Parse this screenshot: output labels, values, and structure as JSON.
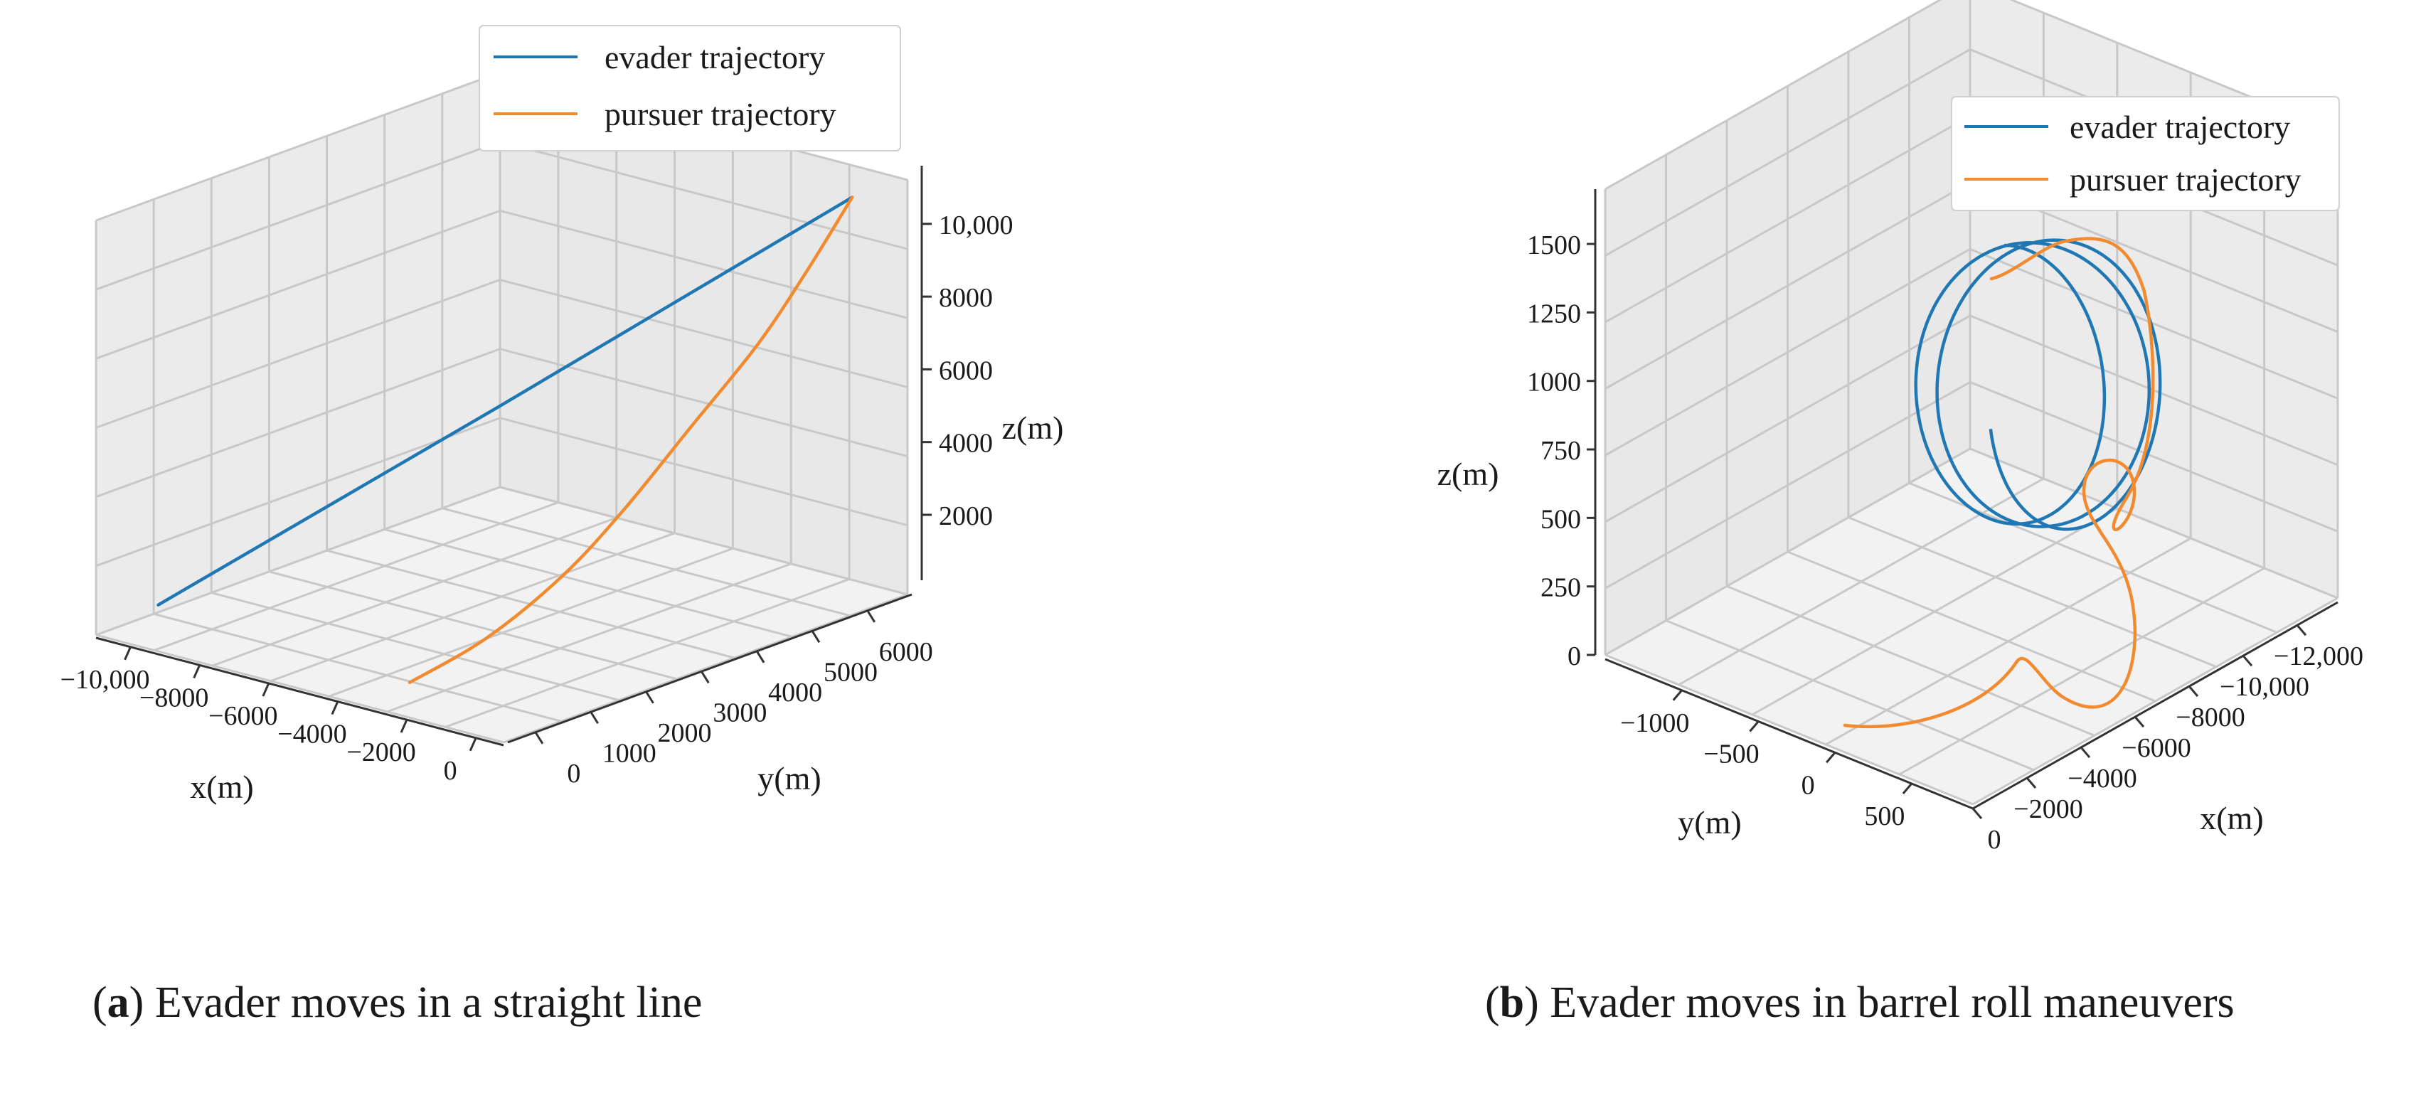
{
  "colors": {
    "evader": "#1f77b4",
    "pursuer": "#f28a30",
    "pane_left": "#ebebeb",
    "pane_right": "#e8e8e8",
    "pane_floor": "#f2f2f2",
    "grid": "#c8c8c8",
    "axis": "#333333"
  },
  "legend": {
    "evader_label": "evader trajectory",
    "pursuer_label": "pursuer trajectory"
  },
  "captions": [
    {
      "label": "a",
      "text": " Evader moves in a straight line"
    },
    {
      "label": "b",
      "text": " Evader moves in barrel roll maneuvers"
    }
  ],
  "chart_data": [
    {
      "type": "line",
      "projection": "3d",
      "xlabel": "x(m)",
      "ylabel": "y(m)",
      "zlabel": "z(m)",
      "xlim": [
        -11000,
        800
      ],
      "ylim": [
        -500,
        6800
      ],
      "zlim": [
        200,
        11600
      ],
      "x_ticks": [
        "−10,000",
        "−8000",
        "−6000",
        "−4000",
        "−2000",
        "0"
      ],
      "y_ticks": [
        "0",
        "1000",
        "2000",
        "3000",
        "4000",
        "5000",
        "6000"
      ],
      "z_ticks": [
        "2000",
        "4000",
        "6000",
        "8000",
        "10,000"
      ],
      "series": [
        {
          "name": "evader trajectory",
          "points": [
            [
              -10000,
              0,
              1000
            ],
            [
              -5000,
              3000,
              6000
            ],
            [
              0,
              6300,
              11200
            ]
          ]
        },
        {
          "name": "pursuer trajectory",
          "points": [
            [
              0,
              6300,
              11200
            ],
            [
              -200,
              5600,
              9500
            ],
            [
              -500,
              4900,
              7800
            ],
            [
              -1000,
              4000,
              5900
            ],
            [
              -1500,
              3100,
              4000
            ],
            [
              -2000,
              2300,
              2500
            ],
            [
              -2600,
              1300,
              1200
            ],
            [
              -3200,
              300,
              400
            ]
          ]
        }
      ]
    },
    {
      "type": "line",
      "projection": "3d",
      "xlabel": "x(m)",
      "ylabel": "y(m)",
      "zlabel": "z(m)",
      "xlim": [
        -13500,
        0
      ],
      "ylim": [
        -1500,
        900
      ],
      "zlim": [
        0,
        1700
      ],
      "x_ticks": [
        "0",
        "−2000",
        "−4000",
        "−6000",
        "−8000",
        "−10,000",
        "−12,000"
      ],
      "y_ticks": [
        "−1000",
        "−500",
        "0",
        "500"
      ],
      "z_ticks": [
        "0",
        "250",
        "500",
        "750",
        "1000",
        "1250",
        "1500"
      ],
      "series": [
        {
          "name": "evader trajectory",
          "description_points": "helical barrel-roll path spiraling around the x axis at roughly 1000 m altitude"
        },
        {
          "name": "pursuer trajectory",
          "description_points": "pursuer starts near ground level and climbs, looping to intercept the evader helix"
        }
      ]
    }
  ]
}
